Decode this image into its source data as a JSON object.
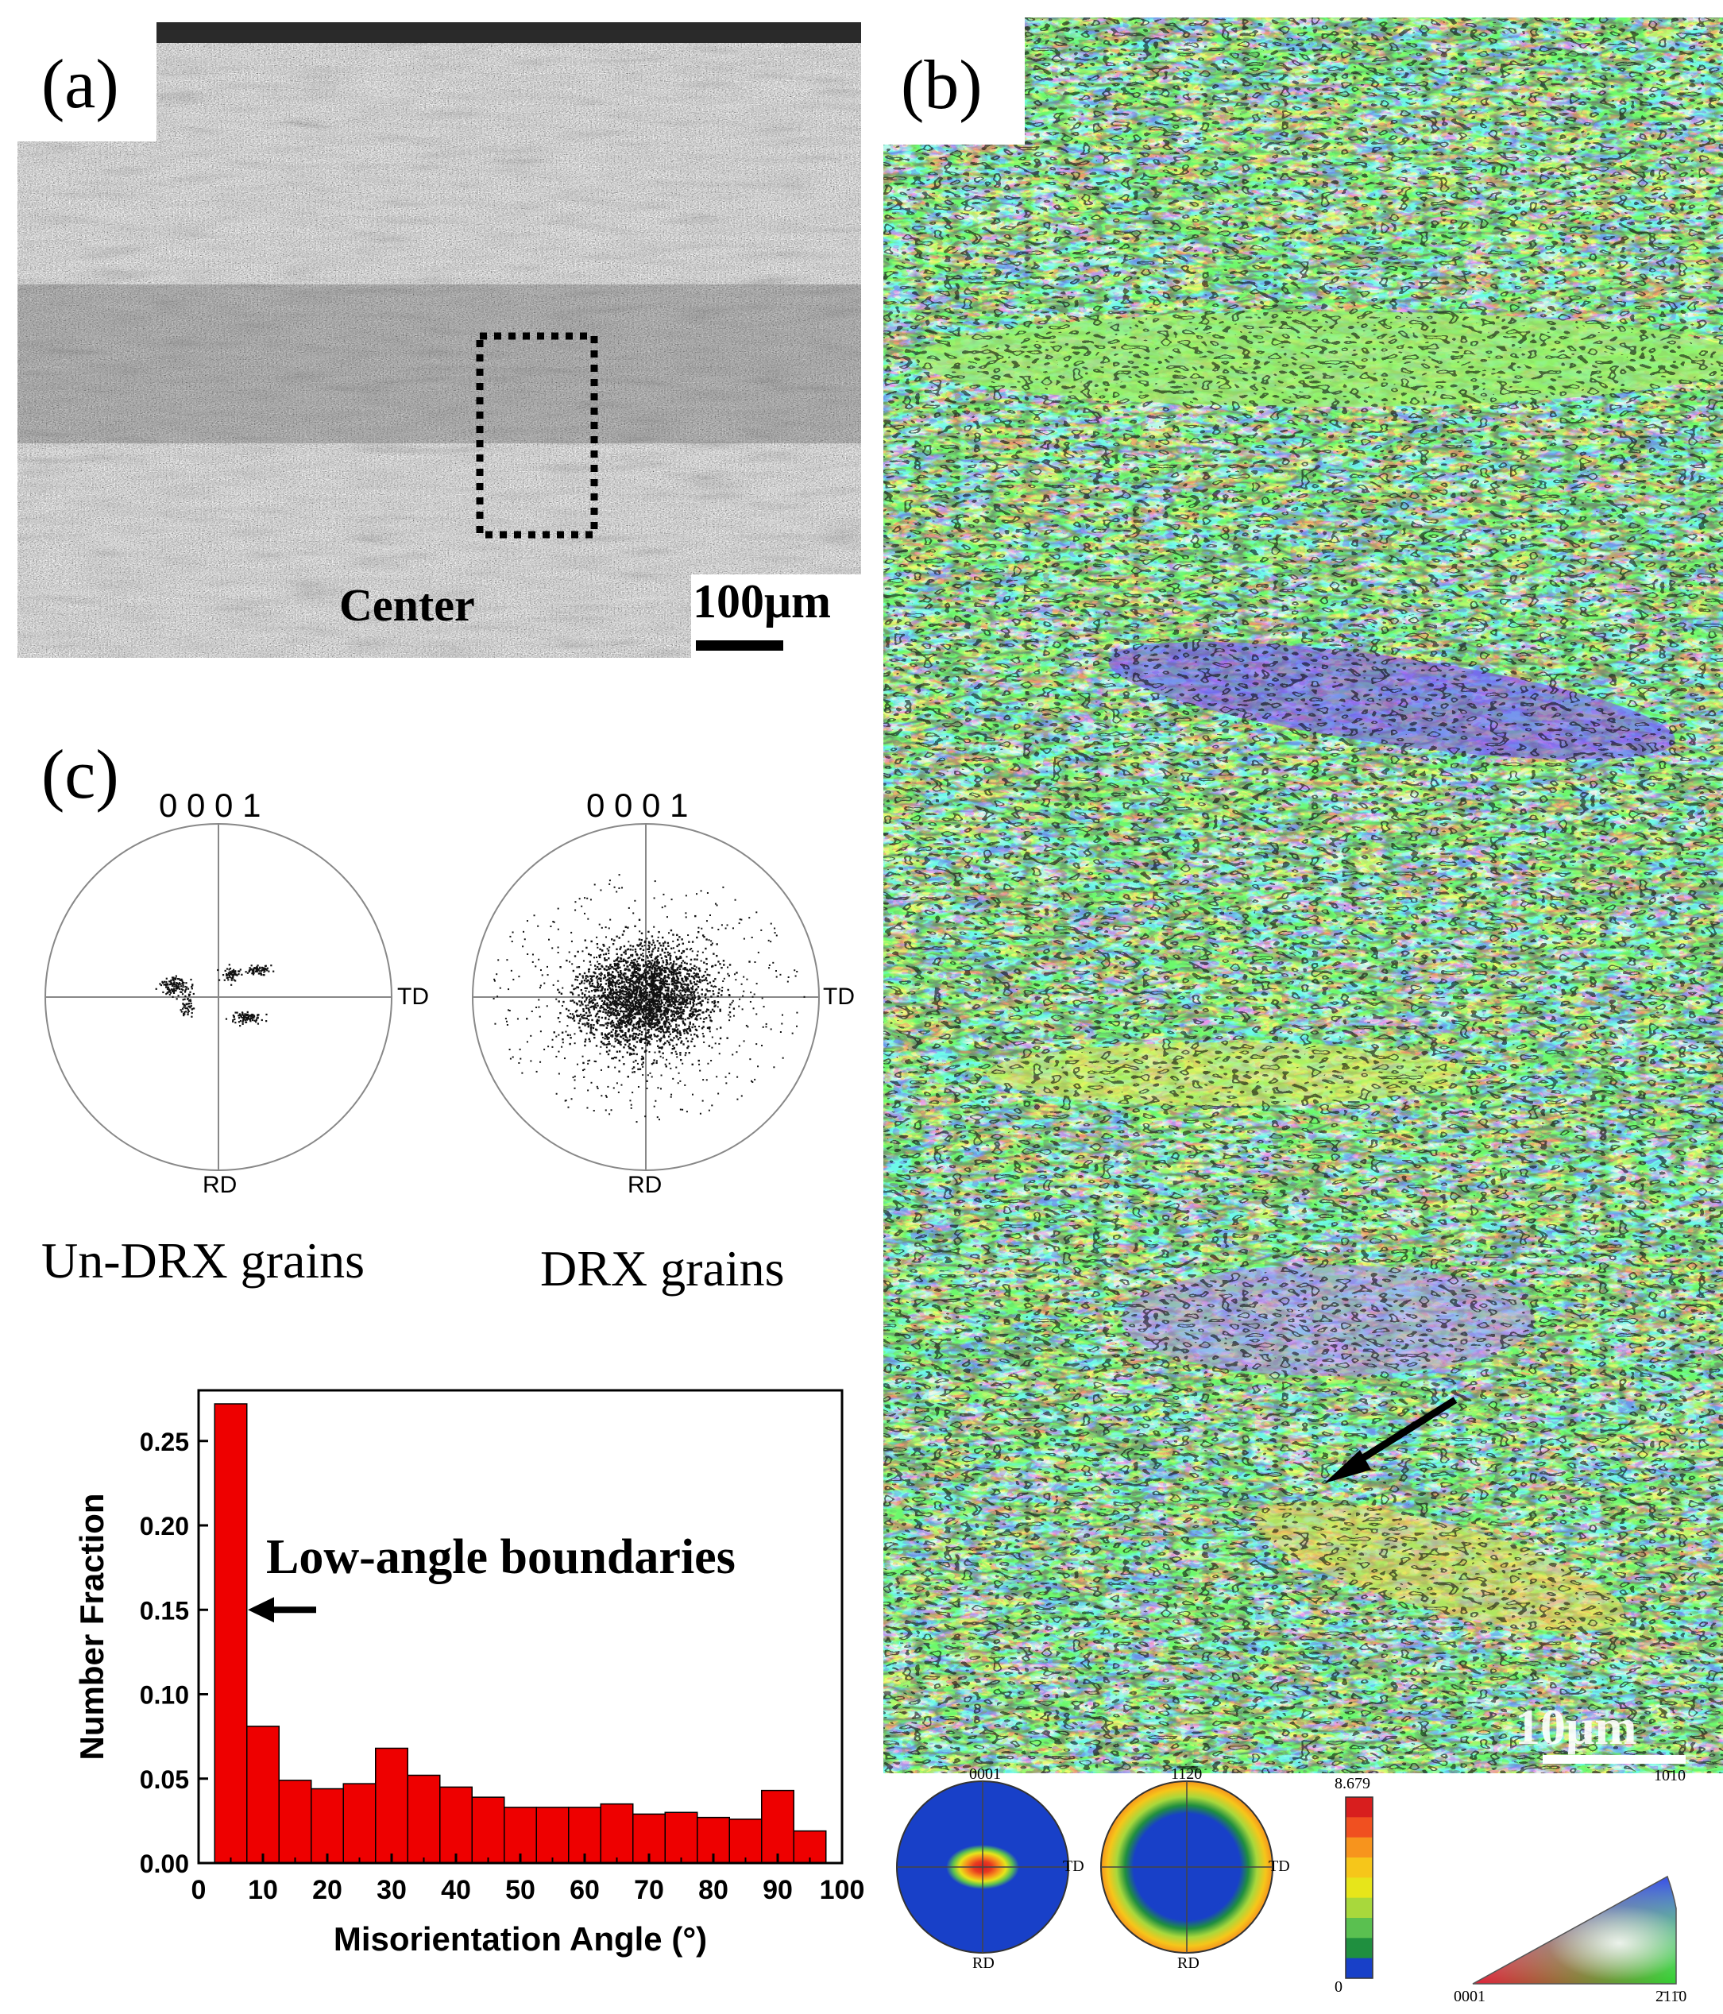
{
  "panel_a": {
    "label": "(a)",
    "center_text": "Center",
    "scale_bar": "100μm"
  },
  "panel_b": {
    "label": "(b)",
    "scale_bar": "10μm",
    "pf_basal_top": "0001",
    "pf_basal_right": "TD",
    "pf_basal_bottom": "RD",
    "pf_prism_top": "11̅2̅0",
    "pf_prism_right": "TD",
    "pf_prism_bottom": "RD",
    "colorbar_max": "8.679",
    "colorbar_min": "0",
    "ipf_corner_top": "10̄10",
    "ipf_corner_left": "0001",
    "ipf_corner_right": "2̄11̄0",
    "colors": {
      "colorbar": [
        "#d81e1e",
        "#f05020",
        "#f7941d",
        "#f6c61a",
        "#e7e51a",
        "#a8d83c",
        "#5ac050",
        "#1f8f3f",
        "#1840c8"
      ]
    }
  },
  "panel_c": {
    "label": "(c)",
    "pf1": {
      "top": "0 0 0 1",
      "right": "TD",
      "bottom": "RD",
      "caption": "Un-DRX grains"
    },
    "pf2": {
      "top": "0 0 0 1",
      "right": "TD",
      "bottom": "RD",
      "caption": "DRX grains"
    }
  },
  "chart_data": {
    "type": "bar",
    "title": "",
    "xlabel": "Misorientation Angle (°)",
    "ylabel": "Number Fraction",
    "xlim": [
      0,
      100
    ],
    "ylim": [
      0,
      0.28
    ],
    "xticks": [
      "0",
      "10",
      "20",
      "30",
      "40",
      "50",
      "60",
      "70",
      "80",
      "90",
      "100"
    ],
    "yticks": [
      "0.00",
      "0.05",
      "0.10",
      "0.15",
      "0.20",
      "0.25"
    ],
    "bin_width": 5,
    "bin_starts": [
      2.5,
      7.5,
      12.5,
      17.5,
      22.5,
      27.5,
      32.5,
      37.5,
      42.5,
      47.5,
      52.5,
      57.5,
      62.5,
      67.5,
      72.5,
      77.5,
      82.5,
      87.5,
      92.5
    ],
    "values": [
      0.272,
      0.081,
      0.049,
      0.044,
      0.047,
      0.068,
      0.052,
      0.045,
      0.039,
      0.033,
      0.033,
      0.033,
      0.035,
      0.029,
      0.03,
      0.027,
      0.026,
      0.043,
      0.019
    ],
    "bar_color": "#ee0000",
    "annotation": "Low-angle boundaries",
    "grid": false
  }
}
